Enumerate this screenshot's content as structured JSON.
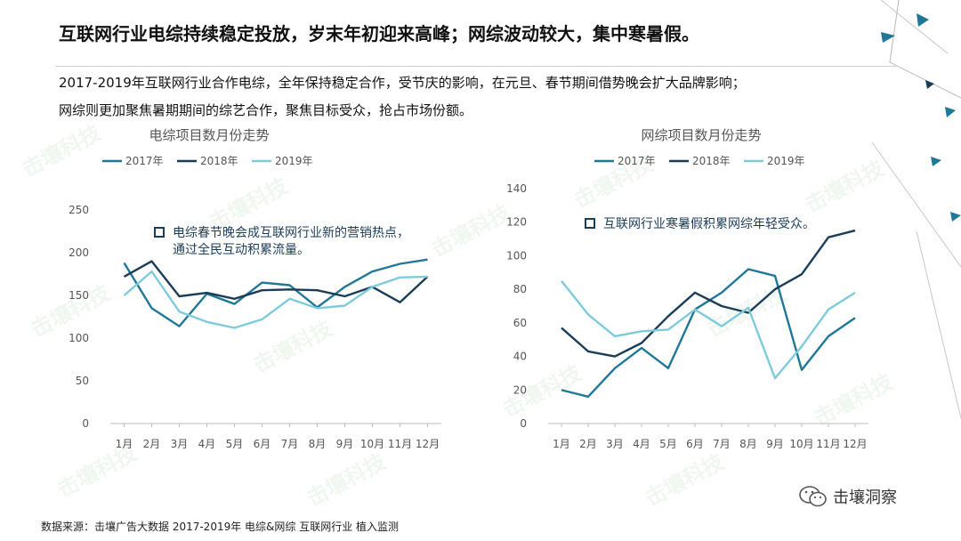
{
  "headline": "互联网行业电综持续稳定投放，岁末年初迎来高峰；网综波动较大，集中寒暑假。",
  "body": {
    "line1": "2017-2019年互联网行业合作电综，全年保持稳定合作，受节庆的影响，在元旦、春节期间借势晚会扩大品牌影响；",
    "line2": "网综则更加聚焦暑期期间的综艺合作，聚焦目标受众，抢占市场份额。"
  },
  "source": "数据来源：击壤广告大数据 2017-2019年 电综&网综 互联网行业 植入监测",
  "wechat": {
    "icon": "wechat-icon",
    "label": "击壤洞察"
  },
  "watermark_text": "击壤科技",
  "colors": {
    "2017": "#1f7898",
    "2018": "#1c3d57",
    "2019": "#7ecbdc",
    "annotation": "#1c3d57"
  },
  "chart_data": [
    {
      "type": "line",
      "title": "电综项目数月份走势",
      "categories": [
        "1月",
        "2月",
        "3月",
        "4月",
        "5月",
        "6月",
        "7月",
        "8月",
        "9月",
        "10月",
        "11月",
        "12月"
      ],
      "series": [
        {
          "name": "2017年",
          "values": [
            188,
            135,
            114,
            152,
            140,
            165,
            162,
            136,
            160,
            178,
            187,
            192
          ]
        },
        {
          "name": "2018年",
          "values": [
            172,
            190,
            149,
            153,
            146,
            156,
            157,
            156,
            149,
            160,
            142,
            172
          ]
        },
        {
          "name": "2019年",
          "values": [
            150,
            178,
            131,
            119,
            112,
            122,
            146,
            135,
            138,
            160,
            171,
            172
          ]
        }
      ],
      "ylim": [
        0,
        250
      ],
      "yticks": [
        0,
        50,
        100,
        150,
        200,
        250
      ],
      "legend": "top",
      "grid": false,
      "annotation": "电综春节晚会成互联网行业新的营销热点，通过全民互动积累流量。",
      "annotation_lines": [
        "电综春节晚会成互联网行业新的营销热点，",
        "通过全民互动积累流量。"
      ]
    },
    {
      "type": "line",
      "title": "网综项目数月份走势",
      "categories": [
        "1月",
        "2月",
        "3月",
        "4月",
        "5月",
        "6月",
        "7月",
        "8月",
        "9月",
        "10月",
        "11月",
        "12月"
      ],
      "series": [
        {
          "name": "2017年",
          "values": [
            20,
            16,
            33,
            45,
            33,
            68,
            78,
            92,
            88,
            32,
            52,
            63
          ]
        },
        {
          "name": "2018年",
          "values": [
            57,
            43,
            40,
            48,
            64,
            78,
            70,
            66,
            80,
            89,
            111,
            115
          ]
        },
        {
          "name": "2019年",
          "values": [
            85,
            65,
            52,
            55,
            56,
            68,
            58,
            69,
            27,
            46,
            68,
            78
          ]
        }
      ],
      "ylim": [
        0,
        140
      ],
      "yticks": [
        0,
        20,
        40,
        60,
        80,
        100,
        120,
        140
      ],
      "legend": "top",
      "grid": false,
      "annotation": "互联网行业寒暑假积累网综年轻受众。",
      "annotation_lines": [
        "互联网行业寒暑假积累网综年轻受众。"
      ]
    }
  ]
}
